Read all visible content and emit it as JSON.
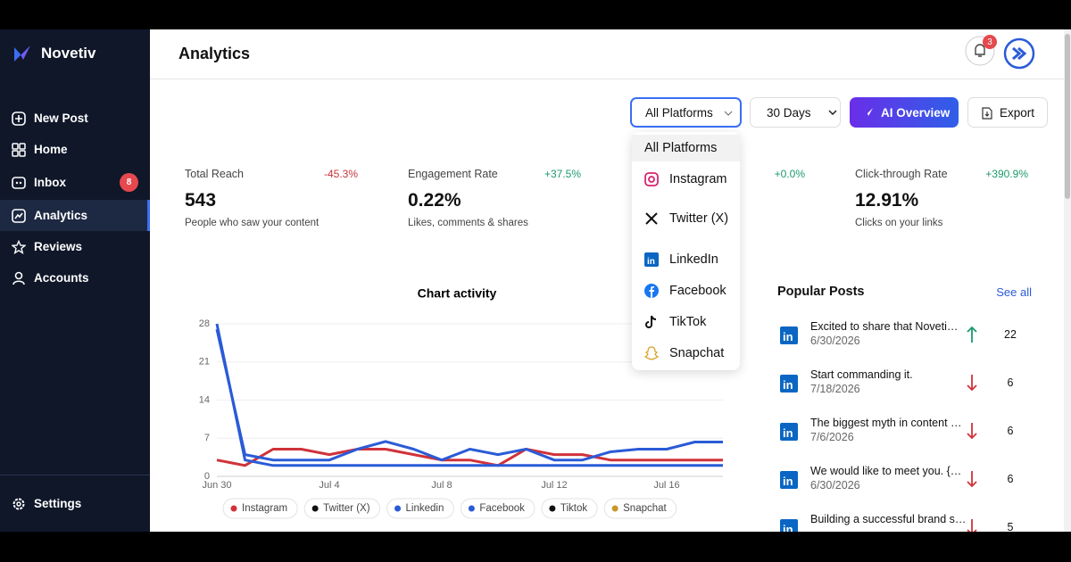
{
  "sidebar": {
    "brand": "Novetiv",
    "nav": [
      {
        "label": "New Post"
      },
      {
        "label": "Home"
      },
      {
        "label": "Inbox",
        "badge": 8
      },
      {
        "label": "Analytics"
      },
      {
        "label": "Reviews"
      },
      {
        "label": "Accounts"
      }
    ],
    "settings": "Settings"
  },
  "header": {
    "title": "Analytics",
    "notifications": 3
  },
  "toolbar": {
    "platform": "All Platforms",
    "range": "30 Days",
    "ai": "AI Overview",
    "export": "Export"
  },
  "dropdown": {
    "options": [
      "All Platforms",
      "Instagram",
      "Twitter (X)",
      "LinkedIn",
      "Facebook",
      "TikTok",
      "Snapchat"
    ]
  },
  "stats": [
    {
      "label": "Total Reach",
      "change": "-45.3%",
      "value": "543",
      "caption": "People who saw your content"
    },
    {
      "label": "Engagement Rate",
      "change": "+37.5%",
      "value": "0.22%",
      "caption": "Likes, comments & shares"
    },
    {
      "change": "+0.0%"
    },
    {
      "label": "Click-through Rate",
      "change": "+390.9%",
      "value": "12.91%",
      "caption": "Clicks on your links"
    }
  ],
  "chart": {
    "type": "line",
    "title": "Chart activity",
    "categories": [
      "Jun 30",
      null,
      null,
      null,
      "Jul 4",
      null,
      null,
      null,
      "Jul 8",
      null,
      null,
      null,
      "Jul 12",
      null,
      null,
      null,
      "Jul 16",
      null,
      null
    ],
    "ylim": [
      0,
      28
    ],
    "yticks": [
      0,
      7,
      14,
      21,
      28
    ],
    "grid": true,
    "series": [
      {
        "name": "Instagram",
        "color": "#d0323a",
        "values": [
          3,
          2,
          5,
          5,
          4,
          5,
          5,
          4,
          3,
          3,
          2,
          5,
          4,
          4,
          3,
          3,
          3,
          3,
          3
        ]
      },
      {
        "name": "Twitter (X)",
        "color": "#111111",
        "values": [
          null,
          null,
          null,
          null,
          null,
          null,
          null,
          null,
          null,
          null,
          null,
          null,
          null,
          null,
          null,
          null,
          null,
          null,
          null
        ]
      },
      {
        "name": "Linkedin",
        "color": "#2a5bd7",
        "values": [
          28,
          3,
          2,
          2,
          2,
          2,
          2,
          2,
          2,
          2,
          2,
          2,
          2,
          2,
          2,
          2,
          2,
          2,
          2
        ]
      },
      {
        "name": "Facebook",
        "color": "#2a5bd7",
        "values": [
          27,
          4,
          3,
          3,
          3,
          5,
          6.4,
          5,
          3,
          5,
          4,
          5,
          3,
          3,
          4.5,
          5,
          5,
          6.3,
          6.3
        ]
      },
      {
        "name": "Tiktok",
        "color": "#111111",
        "values": [
          null,
          null,
          null,
          null,
          null,
          null,
          null,
          null,
          null,
          null,
          null,
          null,
          null,
          null,
          null,
          null,
          null,
          null,
          null
        ]
      },
      {
        "name": "Snapchat",
        "color": "#c9962b",
        "values": [
          null,
          null,
          null,
          null,
          null,
          null,
          null,
          null,
          null,
          null,
          null,
          null,
          null,
          null,
          null,
          null,
          null,
          null,
          null
        ]
      }
    ]
  },
  "popular": {
    "title": "Popular Posts",
    "link": "See all",
    "posts": [
      {
        "title": "Excited to share that Noveti…",
        "date": "6/30/2026",
        "trend": "up",
        "count": 22
      },
      {
        "title": "Start commanding it.",
        "date": "7/18/2026",
        "trend": "down",
        "count": 6
      },
      {
        "title": "The biggest myth in content …",
        "date": "7/6/2026",
        "trend": "down",
        "count": 6
      },
      {
        "title": "We would like to meet you. {…",
        "date": "6/30/2026",
        "trend": "down",
        "count": 6
      },
      {
        "title": "Building a successful brand s…",
        "trend": "down",
        "count": 5
      }
    ]
  }
}
